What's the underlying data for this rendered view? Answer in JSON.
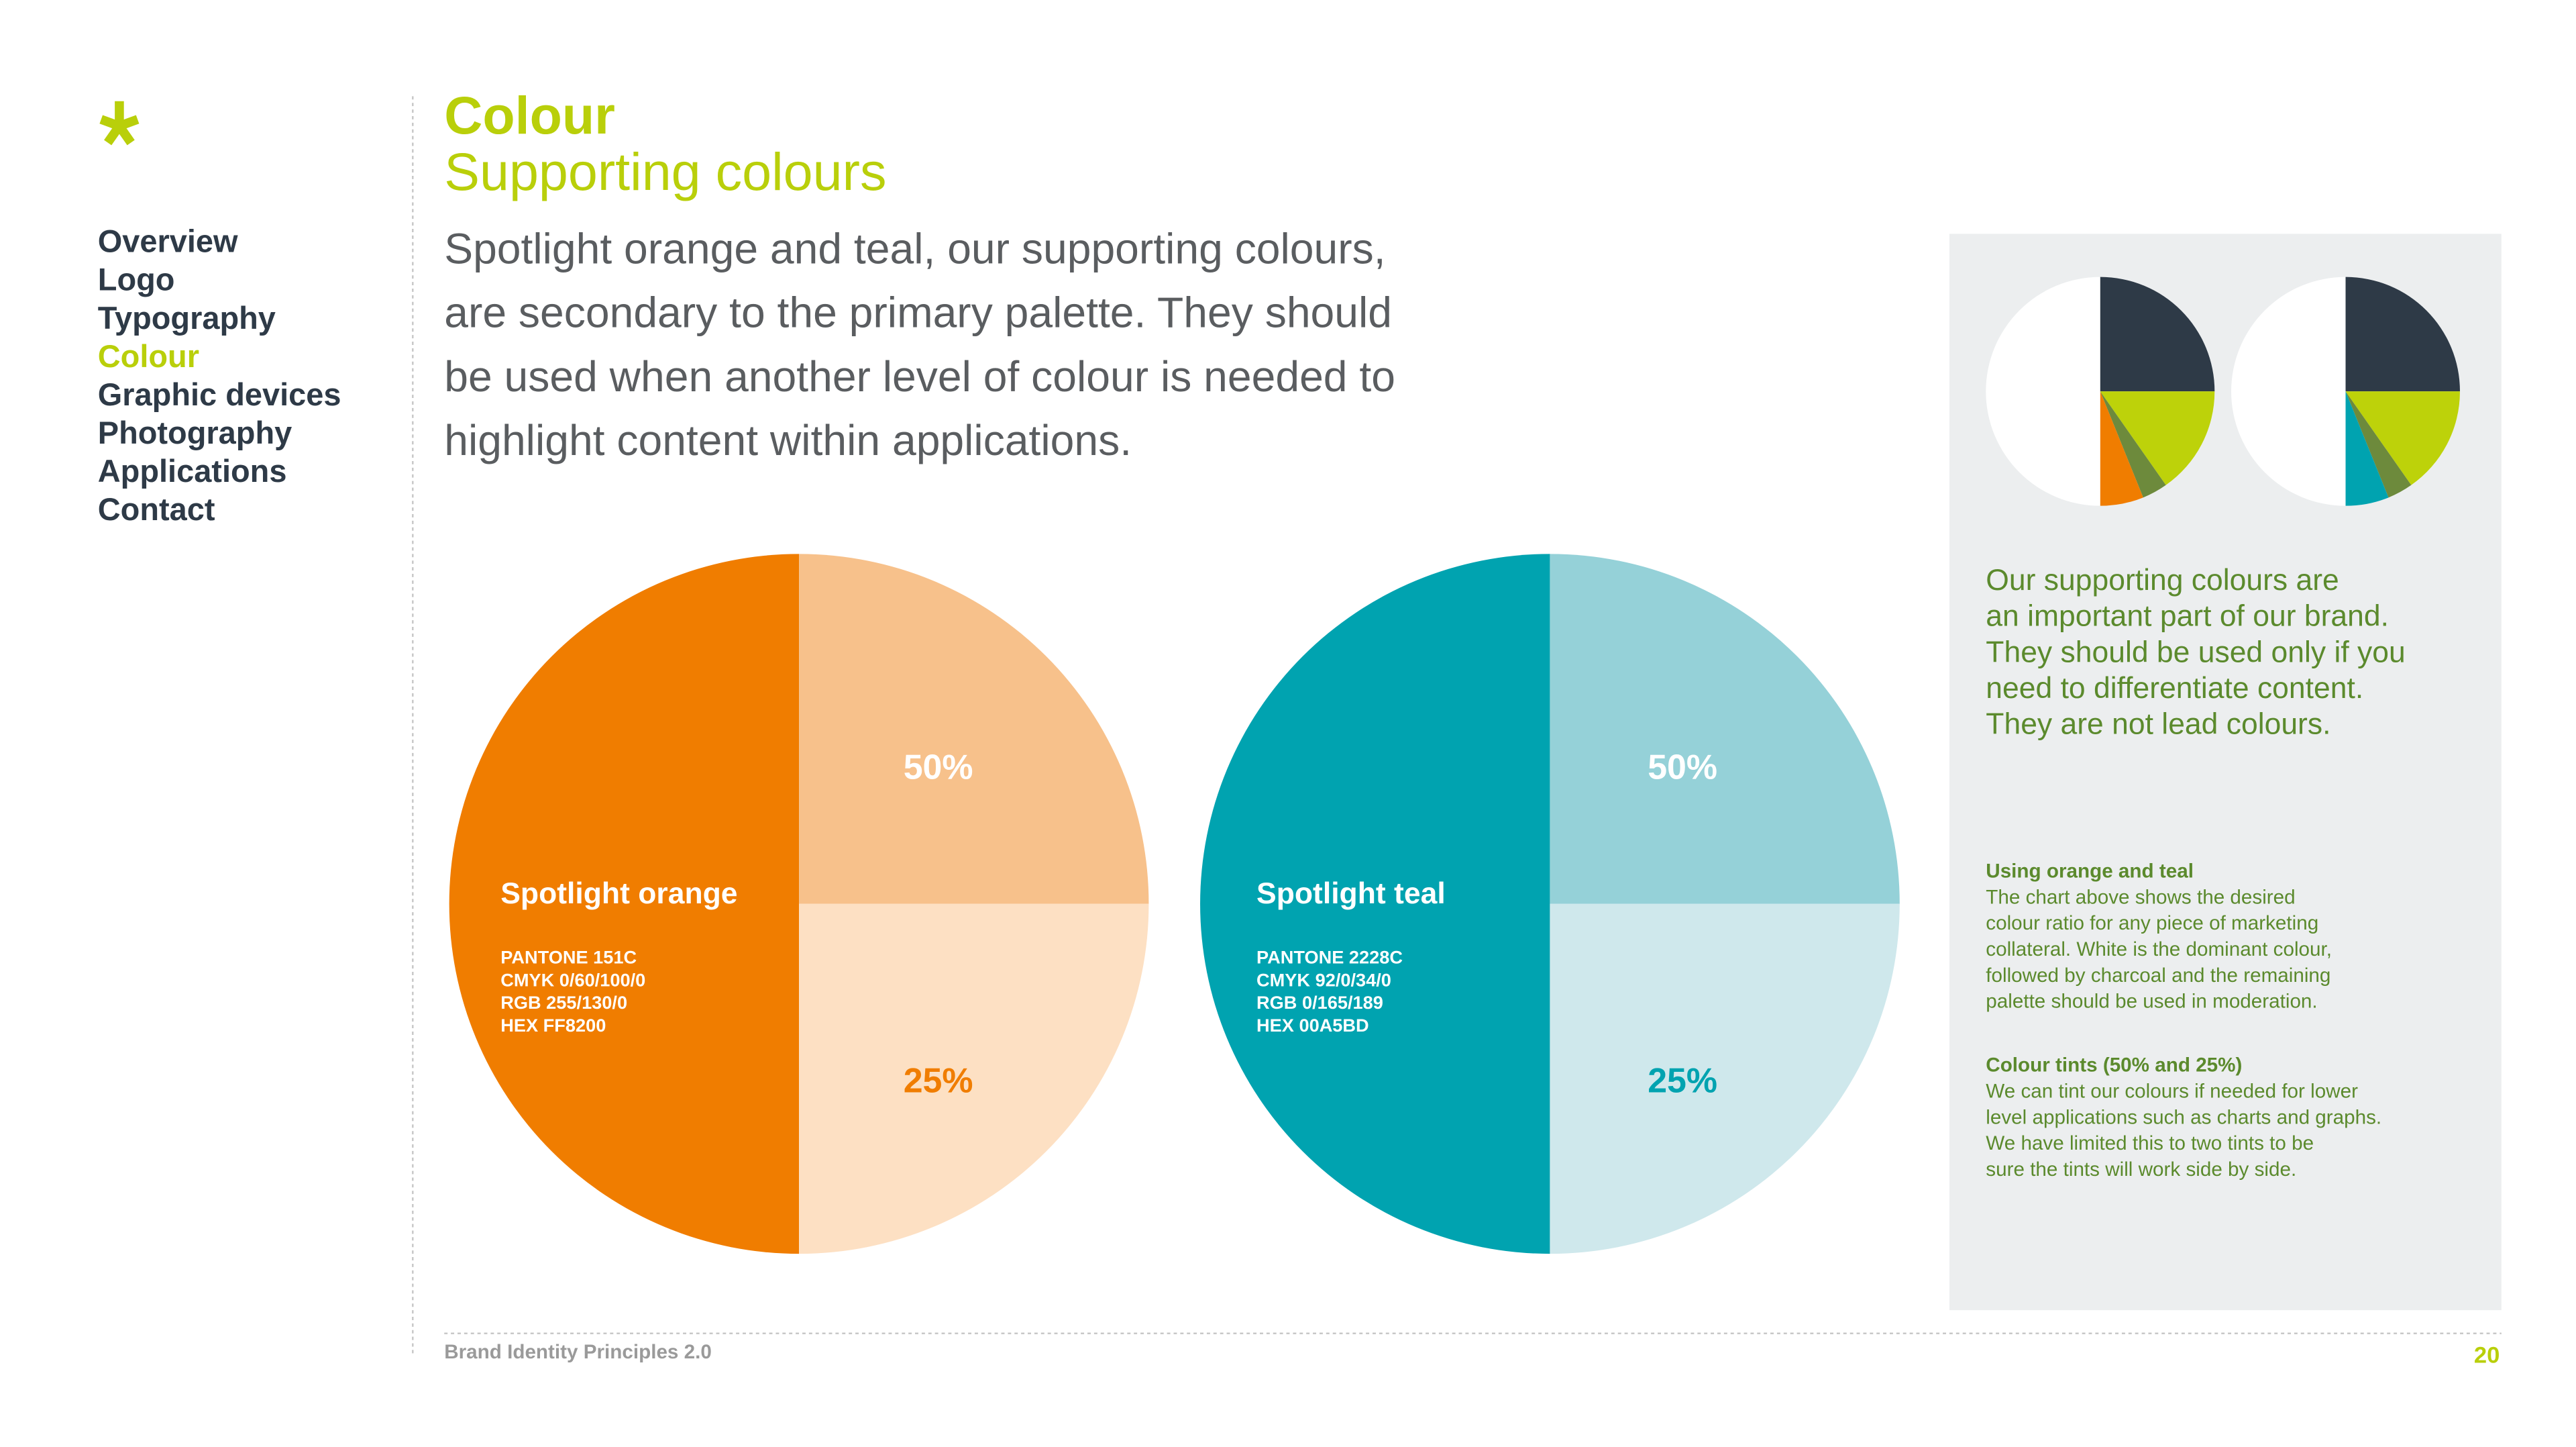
{
  "nav": {
    "items": [
      "Overview",
      "Logo",
      "Typography",
      "Colour",
      "Graphic devices",
      "Photography",
      "Applications",
      "Contact"
    ]
  },
  "header": {
    "title": "Colour",
    "subtitle": "Supporting colours"
  },
  "intro": {
    "lines": [
      "Spotlight orange and teal, our supporting colours,",
      "are secondary to the primary palette. They should",
      "be used when another level of colour is needed to",
      "highlight content within applications."
    ]
  },
  "swatches": [
    {
      "name": "Spotlight orange",
      "specs": [
        "PANTONE 151C",
        "CMYK 0/60/100/0",
        "RGB 255/130/0",
        "HEX FF8200"
      ],
      "tint_top": "50%",
      "tint_bottom": "25%"
    },
    {
      "name": "Spotlight teal",
      "specs": [
        "PANTONE 2228C",
        "CMYK 92/0/34/0",
        "RGB 0/165/189",
        "HEX 00A5BD"
      ],
      "tint_top": "50%",
      "tint_bottom": "25%"
    }
  ],
  "sidebar": {
    "lead": [
      "Our supporting colours are",
      "an important part of our brand.",
      "They should be used only if you",
      "need to differentiate content.",
      "They are not lead colours."
    ],
    "sections": [
      {
        "heading": "Using orange and teal",
        "lines": [
          "The chart above shows the desired",
          "colour ratio for any piece of marketing",
          "collateral. White is the dominant colour,",
          "followed by charcoal and the remaining",
          "palette should be used in moderation."
        ]
      },
      {
        "heading": "Colour tints (50% and 25%)",
        "lines": [
          "We can tint our colours if needed for lower",
          "level applications such as charts and graphs.",
          "We have limited this to two tints to be",
          "sure the tints will work side by side."
        ]
      }
    ]
  },
  "footer": {
    "document": "Brand Identity Principles 2.0",
    "page": "20"
  }
}
